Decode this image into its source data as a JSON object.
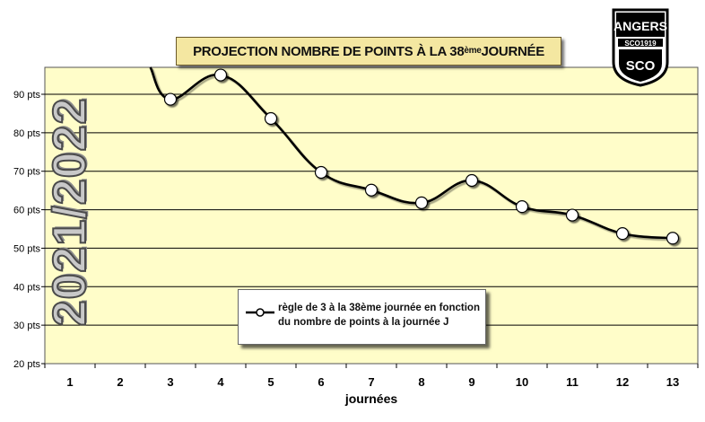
{
  "chart_data": {
    "type": "line",
    "title_main": "PROJECTION NOMBRE DE POINTS À LA 38",
    "title_sup": "ème",
    "title_end": " JOURNÉE",
    "xlabel": "journées",
    "ylabel": "",
    "categories": [
      "1",
      "2",
      "3",
      "4",
      "5",
      "6",
      "7",
      "8",
      "9",
      "10",
      "11",
      "12",
      "13"
    ],
    "ylim": [
      20,
      97
    ],
    "yticks": [
      20,
      30,
      40,
      50,
      60,
      70,
      80,
      90
    ],
    "ytick_labels": [
      "20 pts",
      "30 pts",
      "40 pts",
      "50 pts",
      "60 pts",
      "70 pts",
      "80 pts",
      "90 pts"
    ],
    "series": [
      {
        "name": "règle de 3 à la 38ème journée en fonction du nombre de points à la journée J",
        "x": [
          3,
          4,
          5,
          6,
          7,
          8,
          9,
          10,
          11,
          12,
          13
        ],
        "values": [
          88.7,
          95,
          83.7,
          69.7,
          65.1,
          61.8,
          67.6,
          60.8,
          58.6,
          53.8,
          52.6
        ],
        "lead_in": {
          "x": 2.6,
          "y": 97
        }
      }
    ],
    "legend_line1": "règle de 3 à la 38ème journée en fonction",
    "legend_line2": "du nombre de points à la journée J",
    "grid": "horizontal",
    "colors": {
      "plot_bg": "#fffdc9",
      "line": "#000000",
      "marker_fill": "#ffffff",
      "grid": "#000000"
    }
  },
  "season_label": "2021/2022",
  "logo": {
    "top_text": "ANGERS",
    "band_text": "SCO1919",
    "monogram": "SCO"
  }
}
